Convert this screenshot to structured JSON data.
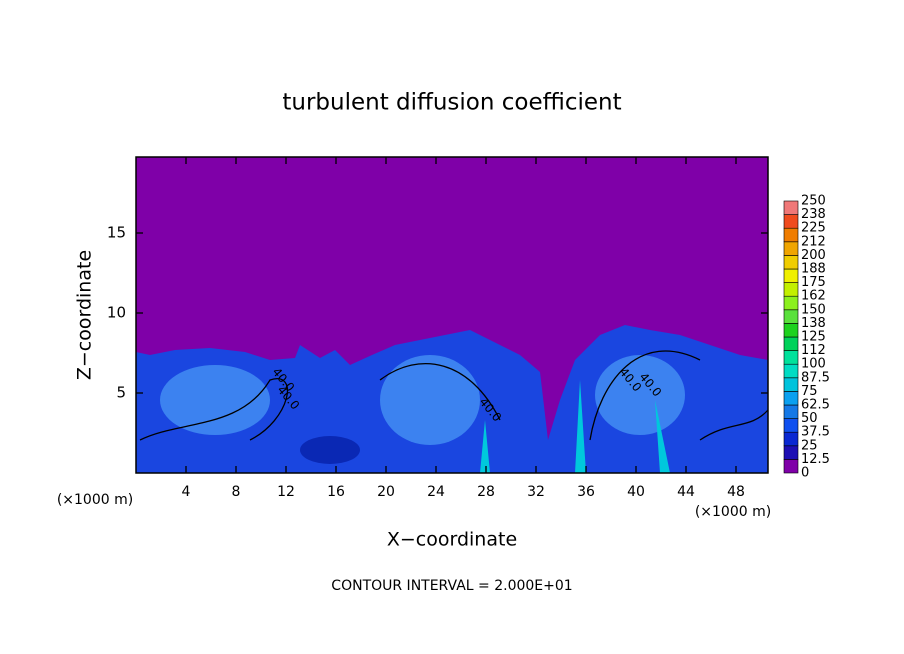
{
  "chart_data": {
    "type": "contour",
    "title": "turbulent diffusion coefficient",
    "xlabel": "X−coordinate",
    "ylabel": "Z−coordinate",
    "x_unit_left": "(×1000 m)",
    "x_unit_right": "(×1000 m)",
    "footer": "CONTOUR INTERVAL = 2.000E+01",
    "xlim": [
      0,
      50.56
    ],
    "xticks": [
      4,
      8,
      12,
      16,
      20,
      24,
      28,
      32,
      36,
      40,
      44,
      48
    ],
    "ylim": [
      0,
      19.75
    ],
    "yticks": [
      5,
      10,
      15
    ],
    "contour_labels": [
      "40.0",
      "40.0",
      "40.0",
      "40.0",
      "40.0"
    ],
    "colorbar": {
      "levels": [
        0,
        12.5,
        25,
        37.5,
        50,
        62.5,
        75,
        87.5,
        100,
        {
          "value": 112.5,
          "label": "112"
        },
        125,
        {
          "value": 137.5,
          "label": "138"
        },
        150,
        {
          "value": 162.5,
          "label": "162"
        },
        175,
        {
          "value": 187.5,
          "label": "188"
        },
        200,
        {
          "value": 212.5,
          "label": "212"
        },
        225,
        {
          "value": 237.5,
          "label": "238"
        },
        250
      ],
      "colors": [
        "#7f00a8",
        "#1e0fb4",
        "#0a28d2",
        "#0f50f0",
        "#1478e6",
        "#0aa0f0",
        "#00c3dc",
        "#00dcc3",
        "#00e19b",
        "#00d25a",
        "#1ed21e",
        "#5ae13c",
        "#8cf01e",
        "#c3f000",
        "#f0f000",
        "#f0cd00",
        "#f0a500",
        "#f07d00",
        "#f04b1e",
        "#f07878"
      ]
    }
  }
}
